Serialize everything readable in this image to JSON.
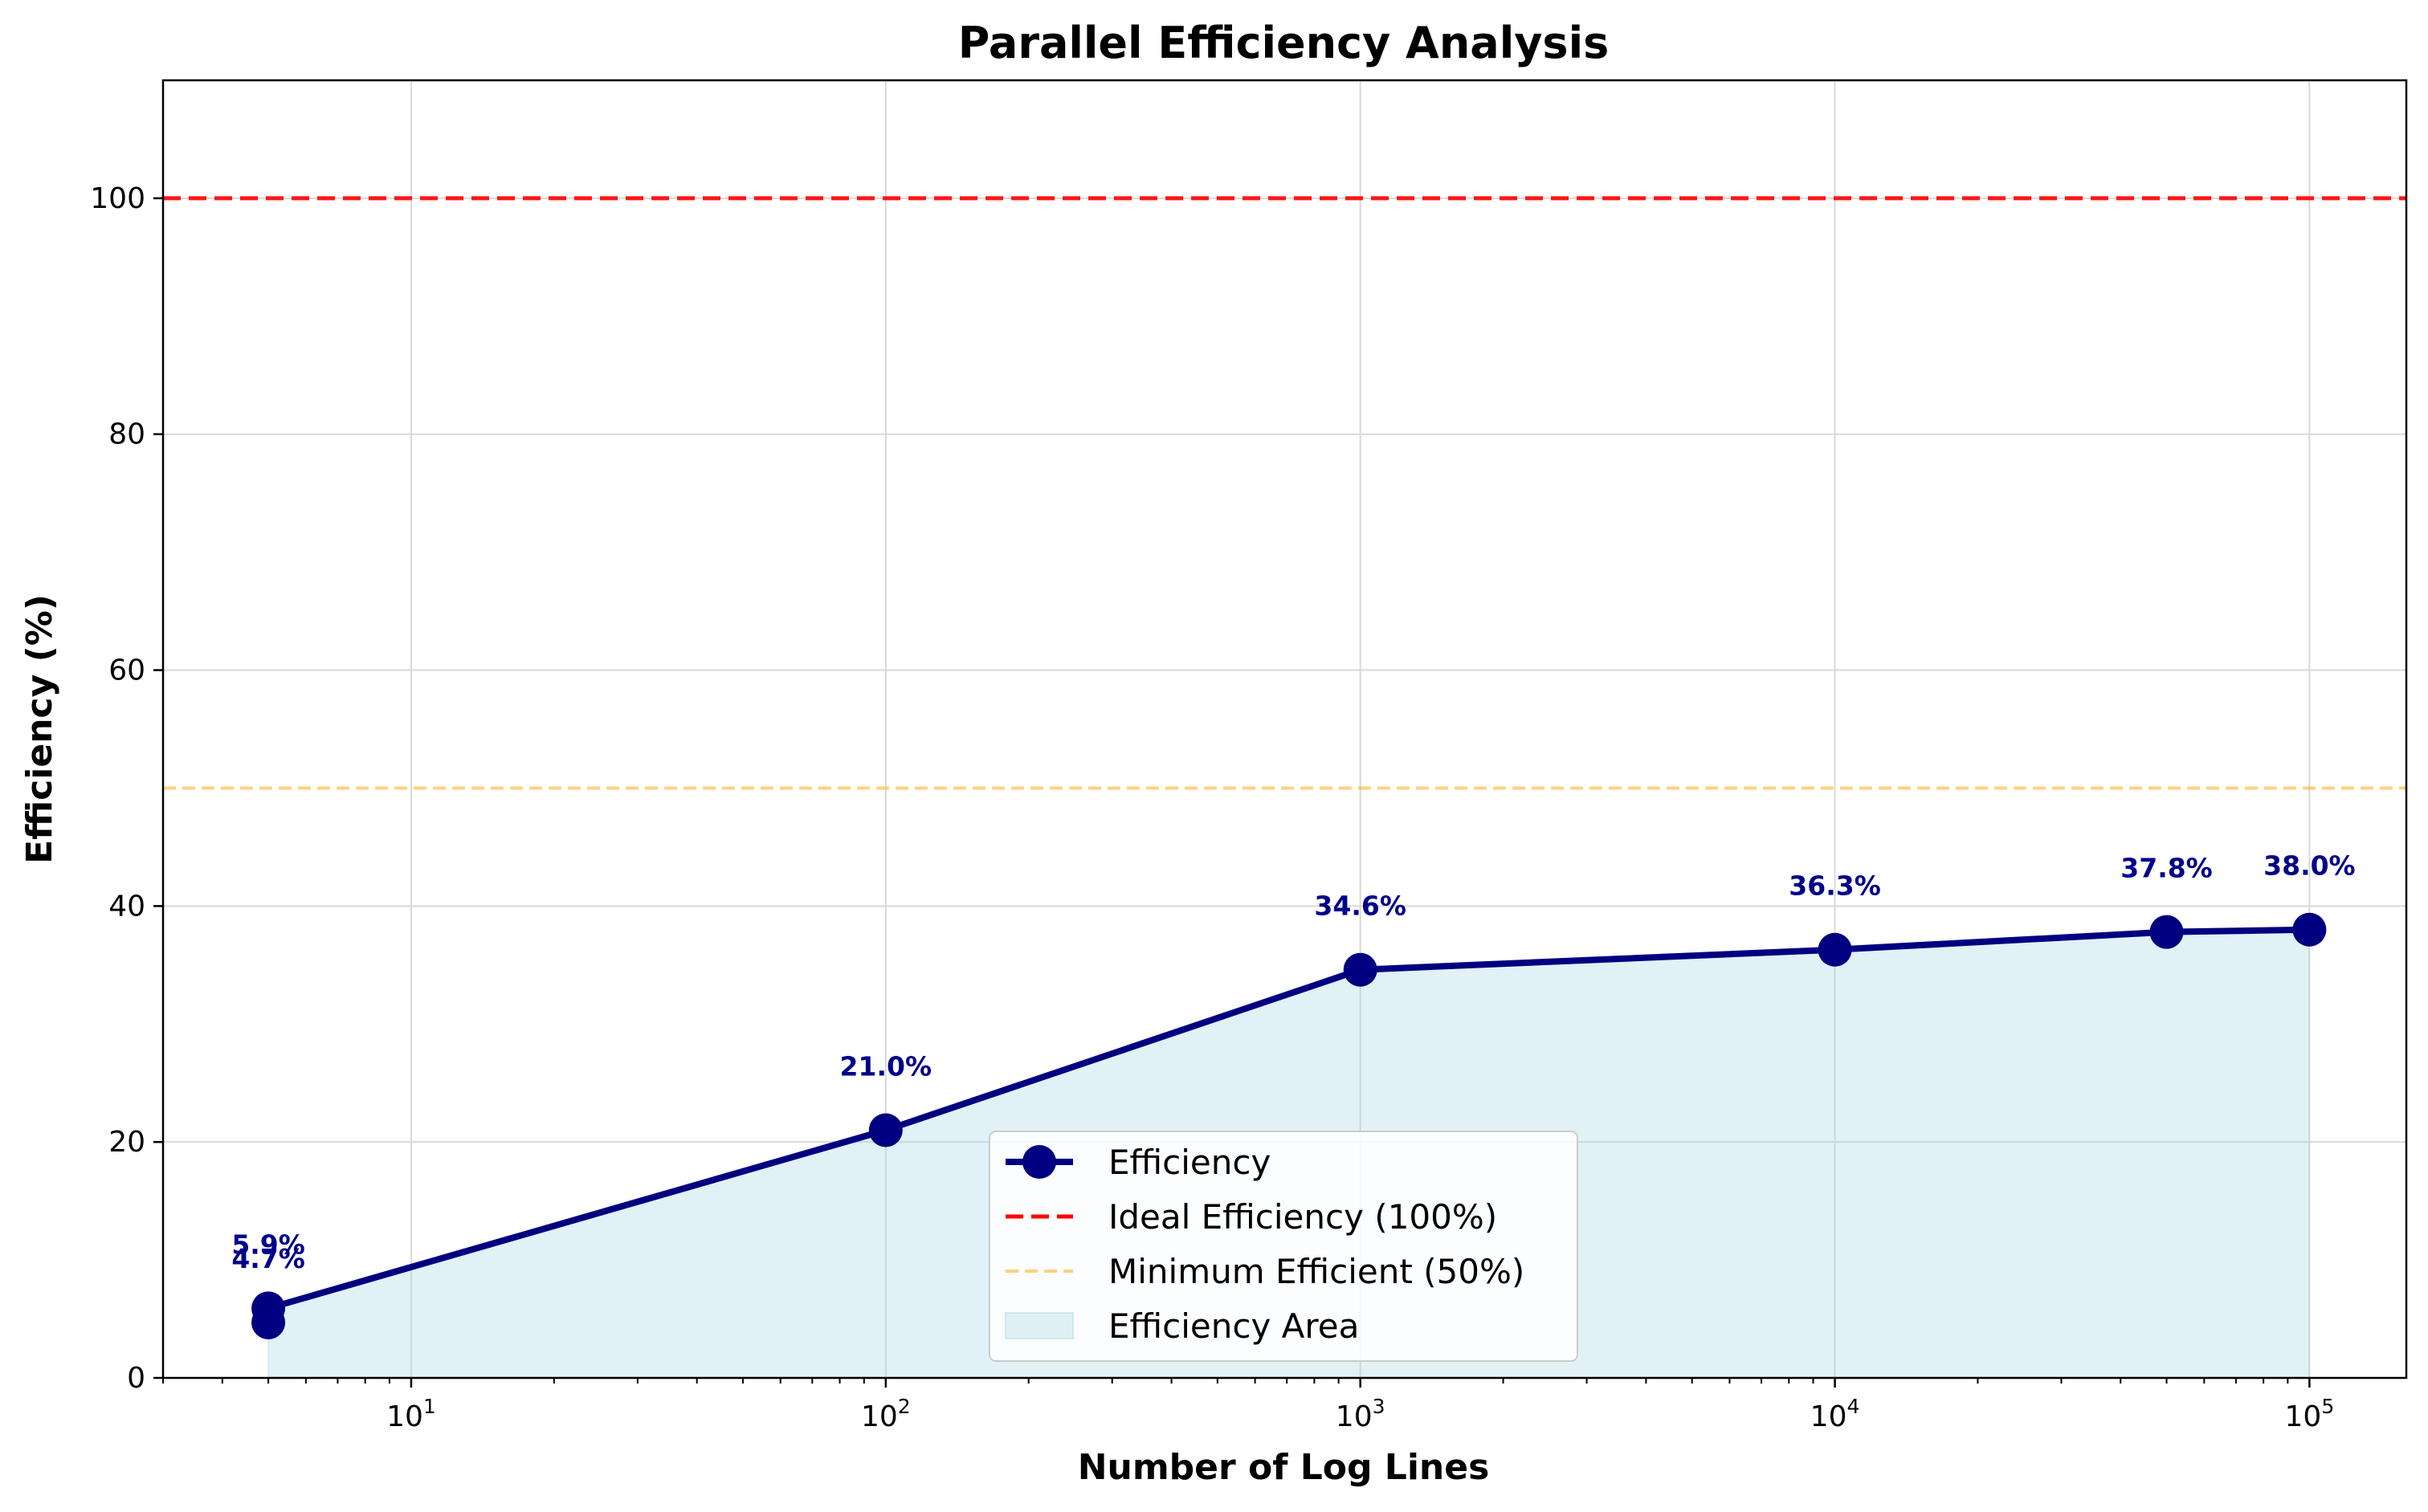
{
  "chart_data": {
    "type": "line",
    "title": "Parallel Efficiency Analysis",
    "xlabel": "Number of Log Lines",
    "ylabel": "Efficiency (%)",
    "x_scale": "log",
    "xlim": [
      3,
      160000
    ],
    "ylim": [
      0,
      110
    ],
    "grid": true,
    "x_ticks": [
      10,
      100,
      1000,
      10000,
      100000
    ],
    "x_tick_labels": [
      {
        "base": "10",
        "exp": "1"
      },
      {
        "base": "10",
        "exp": "2"
      },
      {
        "base": "10",
        "exp": "3"
      },
      {
        "base": "10",
        "exp": "4"
      },
      {
        "base": "10",
        "exp": "5"
      }
    ],
    "y_ticks": [
      0,
      20,
      40,
      60,
      80,
      100
    ],
    "y_tick_labels": [
      "0",
      "20",
      "40",
      "60",
      "80",
      "100"
    ],
    "series": [
      {
        "name": "Efficiency",
        "color": "#000080",
        "points": [
          {
            "x": 5,
            "y": 4.7,
            "label": "4.7%"
          },
          {
            "x": 5,
            "y": 5.9,
            "label": "5.9%"
          },
          {
            "x": 100,
            "y": 21.0,
            "label": "21.0%"
          },
          {
            "x": 1000,
            "y": 34.6,
            "label": "34.6%"
          },
          {
            "x": 10000,
            "y": 36.3,
            "label": "36.3%"
          },
          {
            "x": 50000,
            "y": 37.8,
            "label": "37.8%"
          },
          {
            "x": 100000,
            "y": 38.0,
            "label": "38.0%"
          }
        ]
      }
    ],
    "reference_lines": [
      {
        "name": "Ideal Efficiency (100%)",
        "y": 100,
        "color": "#ff0000",
        "style": "dashed"
      },
      {
        "name": "Minimum Efficient (50%)",
        "y": 50,
        "color": "#ffa500",
        "style": "dashed"
      }
    ],
    "area": {
      "name": "Efficiency Area",
      "color": "#add8e6"
    },
    "legend": {
      "position": "bottom-center",
      "entries": [
        "Efficiency",
        "Ideal Efficiency (100%)",
        "Minimum Efficient (50%)",
        "Efficiency Area"
      ]
    }
  }
}
